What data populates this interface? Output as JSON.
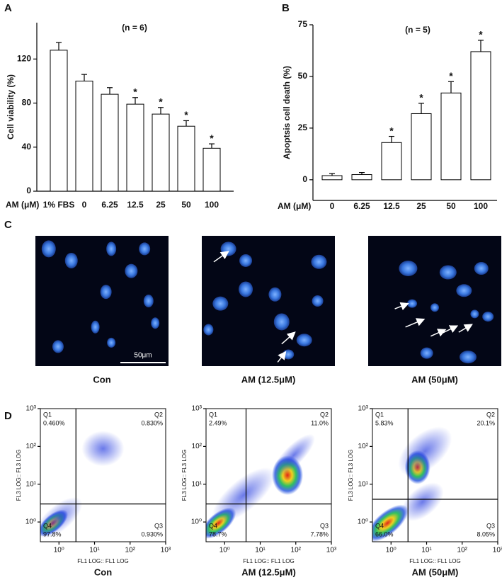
{
  "panel_labels": [
    "A",
    "B",
    "C",
    "D"
  ],
  "chart_data": [
    {
      "type": "bar",
      "annotation": "(n = 6)",
      "x_label": "AM (μM)",
      "y_label": "Cell viability (%)",
      "categories": [
        "1% FBS",
        "0",
        "6.25",
        "12.5",
        "25",
        "50",
        "100"
      ],
      "values": [
        128,
        100,
        88,
        79,
        70,
        59,
        39
      ],
      "errors": [
        7,
        6,
        6,
        6,
        6,
        5,
        4
      ],
      "significance": [
        null,
        null,
        null,
        "*",
        "*",
        "*",
        "*"
      ],
      "color": "#ffffff",
      "ylim": [
        0,
        153
      ],
      "yticks": [
        0,
        40,
        80,
        120
      ]
    },
    {
      "type": "bar",
      "annotation": "(n = 5)",
      "x_label": "AM (μM)",
      "y_label": "Apoptsis cell death (%)",
      "categories": [
        "0",
        "6.25",
        "12.5",
        "25",
        "50",
        "100"
      ],
      "values": [
        2,
        2.5,
        18,
        32,
        42,
        62
      ],
      "errors": [
        1,
        1,
        3,
        5,
        5.5,
        5.5
      ],
      "significance": [
        null,
        null,
        "*",
        "*",
        "*",
        "*"
      ],
      "color": "#ffffff",
      "ylim": [
        -10,
        75
      ],
      "yticks": [
        0,
        25,
        50,
        75
      ]
    },
    {
      "type": "flow",
      "caption": "Con",
      "x_label": "FL1 LOG:: FL1 LOG",
      "y_label": "FL3 LOG:: FL3 LOG",
      "xscale": "log",
      "yscale": "log",
      "xlim": [
        0.3,
        1000
      ],
      "ylim": [
        0.3,
        1000
      ],
      "xticks": [
        {
          "value": 1,
          "label": "10⁰"
        },
        {
          "value": 10,
          "label": "10¹"
        },
        {
          "value": 100,
          "label": "10²"
        },
        {
          "value": 1000,
          "label": "10³"
        }
      ],
      "yticks": [
        {
          "value": 1,
          "label": "10⁰"
        },
        {
          "value": 10,
          "label": "10¹"
        },
        {
          "value": 100,
          "label": "10²"
        },
        {
          "value": 1000,
          "label": "10³"
        }
      ],
      "gate_x": 3,
      "gate_y": 3,
      "quadrant_names": [
        "Q1",
        "Q2",
        "Q3",
        "Q4"
      ],
      "values": [
        0.46,
        0.83,
        0.93,
        97.8
      ],
      "value_labels": [
        "0.460%",
        "0.830%",
        "0.930%",
        "97.8%"
      ]
    },
    {
      "type": "flow",
      "caption": "AM (12.5μM)",
      "x_label": "FL1 LOG:: FL1 LOG",
      "y_label": "FL3 LOG:: FL3 LOG",
      "xscale": "log",
      "yscale": "log",
      "xlim": [
        0.3,
        1000
      ],
      "ylim": [
        0.3,
        1000
      ],
      "xticks": [
        {
          "value": 1,
          "label": "10⁰"
        },
        {
          "value": 10,
          "label": "10¹"
        },
        {
          "value": 100,
          "label": "10²"
        },
        {
          "value": 1000,
          "label": "10³"
        }
      ],
      "yticks": [
        {
          "value": 1,
          "label": "10⁰"
        },
        {
          "value": 10,
          "label": "10¹"
        },
        {
          "value": 100,
          "label": "10²"
        },
        {
          "value": 1000,
          "label": "10³"
        }
      ],
      "gate_x": 4,
      "gate_y": 3,
      "quadrant_names": [
        "Q1",
        "Q2",
        "Q3",
        "Q4"
      ],
      "values": [
        2.49,
        11.0,
        7.78,
        78.7
      ],
      "value_labels": [
        "2.49%",
        "11.0%",
        "7.78%",
        "78.7%"
      ]
    },
    {
      "type": "flow",
      "caption": "AM (50μM)",
      "x_label": "FL1 LOG:: FL1 LOG",
      "y_label": "FL3 LOG:: FL3 LOG",
      "xscale": "log",
      "yscale": "log",
      "xlim": [
        0.3,
        1000
      ],
      "ylim": [
        0.3,
        1000
      ],
      "xticks": [
        {
          "value": 1,
          "label": "10⁰"
        },
        {
          "value": 10,
          "label": "10¹"
        },
        {
          "value": 100,
          "label": "10²"
        },
        {
          "value": 1000,
          "label": "10³"
        }
      ],
      "yticks": [
        {
          "value": 1,
          "label": "10⁰"
        },
        {
          "value": 10,
          "label": "10¹"
        },
        {
          "value": 100,
          "label": "10²"
        },
        {
          "value": 1000,
          "label": "10³"
        }
      ],
      "gate_x": 3,
      "gate_y": 4,
      "quadrant_names": [
        "Q1",
        "Q2",
        "Q3",
        "Q4"
      ],
      "values": [
        5.83,
        20.1,
        8.05,
        66.0
      ],
      "value_labels": [
        "5.83%",
        "20.1%",
        "8.05%",
        "66.0%"
      ]
    }
  ],
  "images": {
    "captions": [
      "Con",
      "AM (12.5μM)",
      "AM (50μM)"
    ],
    "scale_bar": "50μm"
  }
}
